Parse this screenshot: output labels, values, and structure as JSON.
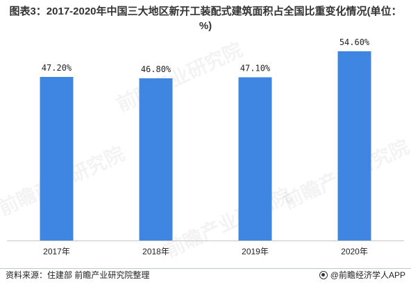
{
  "title": "图表3：2017-2020年中国三大地区新开工装配式建筑面积占全国比重变化情况(单位：%)",
  "chart_data": {
    "type": "bar",
    "categories": [
      "2017年",
      "2018年",
      "2019年",
      "2020年"
    ],
    "values": [
      47.2,
      46.8,
      47.1,
      54.6
    ],
    "value_labels": [
      "47.20%",
      "46.80%",
      "47.10%",
      "54.60%"
    ],
    "ylim": [
      0,
      60
    ],
    "bar_color": "#3f86e2",
    "grid": false,
    "legend": "none"
  },
  "footer": {
    "source": "资料来源：住建部 前瞻产业研究院整理",
    "brand": "@前瞻经济学人APP",
    "brand_icon": "qianzhan-logo-icon"
  },
  "watermark": {
    "text": "前瞻产业研究院"
  }
}
